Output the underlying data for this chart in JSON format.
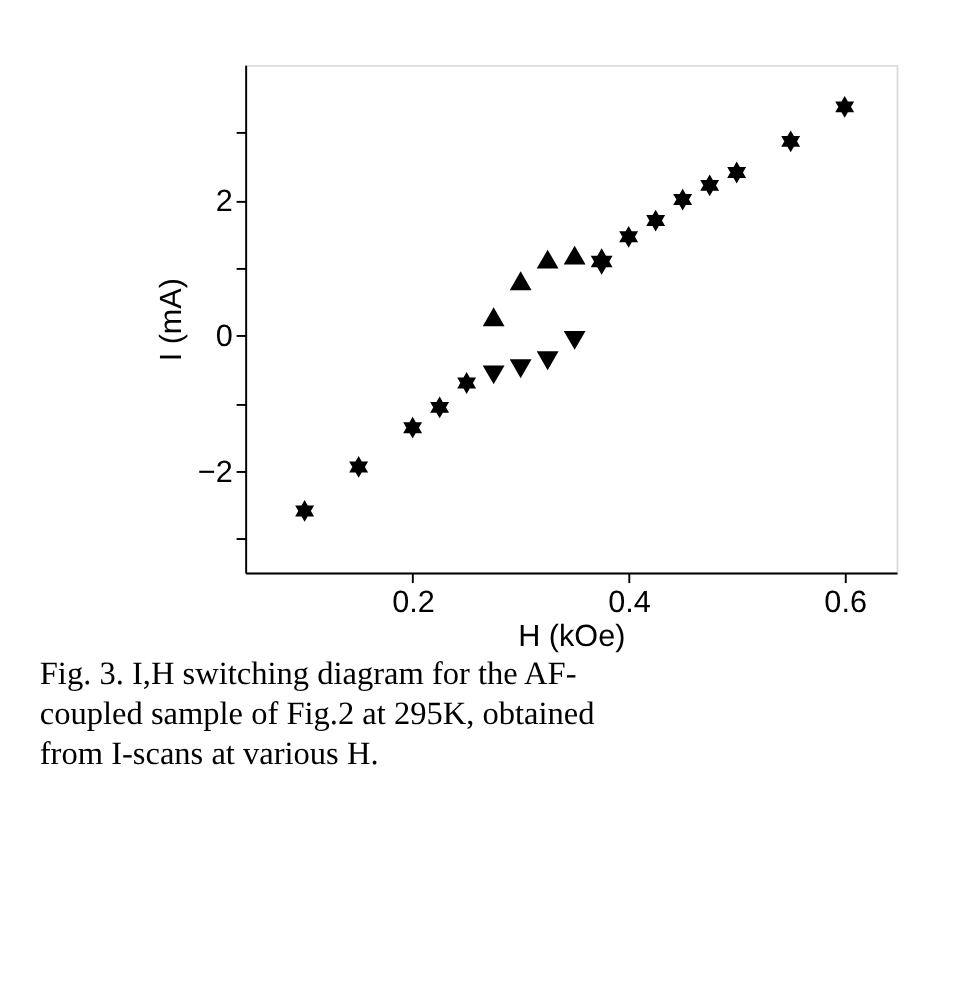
{
  "chart_data": {
    "type": "scatter",
    "xlabel": "H (kOe)",
    "ylabel": "I (mA)",
    "xlim": [
      0.045,
      0.648
    ],
    "xticks": [
      0.2,
      0.4,
      0.6
    ],
    "ylim": [
      -3.5,
      4.0
    ],
    "yticks": [
      {
        "value": -3,
        "label": null
      },
      -2,
      {
        "value": -1,
        "label": null
      },
      0,
      {
        "value": 1,
        "label": null
      },
      2,
      {
        "value": 3,
        "label": null
      }
    ],
    "grid": false,
    "legend": false,
    "annotations": [
      "Fig. 3. I,H switching diagram for the AF-coupled sample of Fig.2 at 295K, obtained from I-scans at various H."
    ],
    "series": [
      {
        "color": "#000000",
        "marker": "star",
        "x": [
          0.1,
          0.15,
          0.2,
          0.225,
          0.25,
          0.4,
          0.425,
          0.45,
          0.475,
          0.5,
          0.55,
          0.6
        ],
        "values": [
          -2.59,
          -1.94,
          -1.36,
          -1.06,
          -0.7,
          1.46,
          1.7,
          2.01,
          2.22,
          2.41,
          2.87,
          3.38
        ]
      },
      {
        "color": "#000000",
        "marker": "triangle",
        "x": [
          0.275,
          0.3,
          0.325,
          0.35,
          0.375
        ],
        "values": [
          0.28,
          0.81,
          1.13,
          1.19,
          1.15
        ]
      },
      {
        "color": "#000000",
        "marker": "triangle-down",
        "x": [
          0.275,
          0.3,
          0.325,
          0.35,
          0.375
        ],
        "values": [
          -0.58,
          -0.49,
          -0.37,
          -0.07,
          1.04
        ]
      }
    ]
  }
}
